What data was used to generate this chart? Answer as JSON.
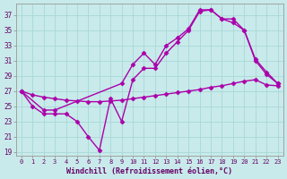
{
  "background_color": "#c8eaea",
  "grid_color": "#a8d8d8",
  "line_color": "#aa00aa",
  "marker": "D",
  "markersize": 2.5,
  "linewidth": 1.0,
  "xlabel": "Windchill (Refroidissement éolien,°C)",
  "ylabel_ticks": [
    19,
    21,
    23,
    25,
    27,
    29,
    31,
    33,
    35,
    37
  ],
  "xtick_labels": [
    "0",
    "1",
    "2",
    "3",
    "4",
    "5",
    "6",
    "7",
    "8",
    "9",
    "10",
    "11",
    "12",
    "13",
    "14",
    "15",
    "16",
    "17",
    "18",
    "19",
    "20",
    "21",
    "22",
    "23"
  ],
  "xlim": [
    -0.5,
    23.5
  ],
  "ylim": [
    18.5,
    38.5
  ],
  "line1_x": [
    0,
    1,
    2,
    3,
    4,
    5,
    6,
    7,
    8,
    9,
    10,
    11,
    12,
    13,
    14,
    15,
    16,
    17,
    18,
    19,
    20,
    21,
    22,
    23
  ],
  "line1_y": [
    27,
    25,
    24,
    24,
    24,
    23,
    21,
    19.2,
    26,
    23,
    28.5,
    30,
    30,
    32,
    33.5,
    35,
    37.5,
    37.7,
    36.5,
    36,
    35,
    31,
    29.2,
    28
  ],
  "line2_x": [
    0,
    1,
    2,
    3,
    4,
    5,
    6,
    7,
    8,
    9,
    10,
    11,
    12,
    13,
    14,
    15,
    16,
    17,
    18,
    19,
    20,
    21,
    22,
    23
  ],
  "line2_y": [
    27,
    26.5,
    26.2,
    26.0,
    25.8,
    25.7,
    25.6,
    25.6,
    25.7,
    25.8,
    26.0,
    26.2,
    26.4,
    26.6,
    26.8,
    27.0,
    27.2,
    27.5,
    27.7,
    28.0,
    28.3,
    28.5,
    27.8,
    27.7
  ],
  "line3_x": [
    0,
    2,
    3,
    9,
    10,
    11,
    12,
    13,
    14,
    15,
    16,
    17,
    18,
    19,
    20,
    21,
    22,
    23
  ],
  "line3_y": [
    27,
    24.5,
    24.5,
    28,
    30.5,
    32,
    30.5,
    33,
    34,
    35.2,
    37.7,
    37.7,
    36.5,
    36.5,
    35,
    31.2,
    29.5,
    28
  ]
}
